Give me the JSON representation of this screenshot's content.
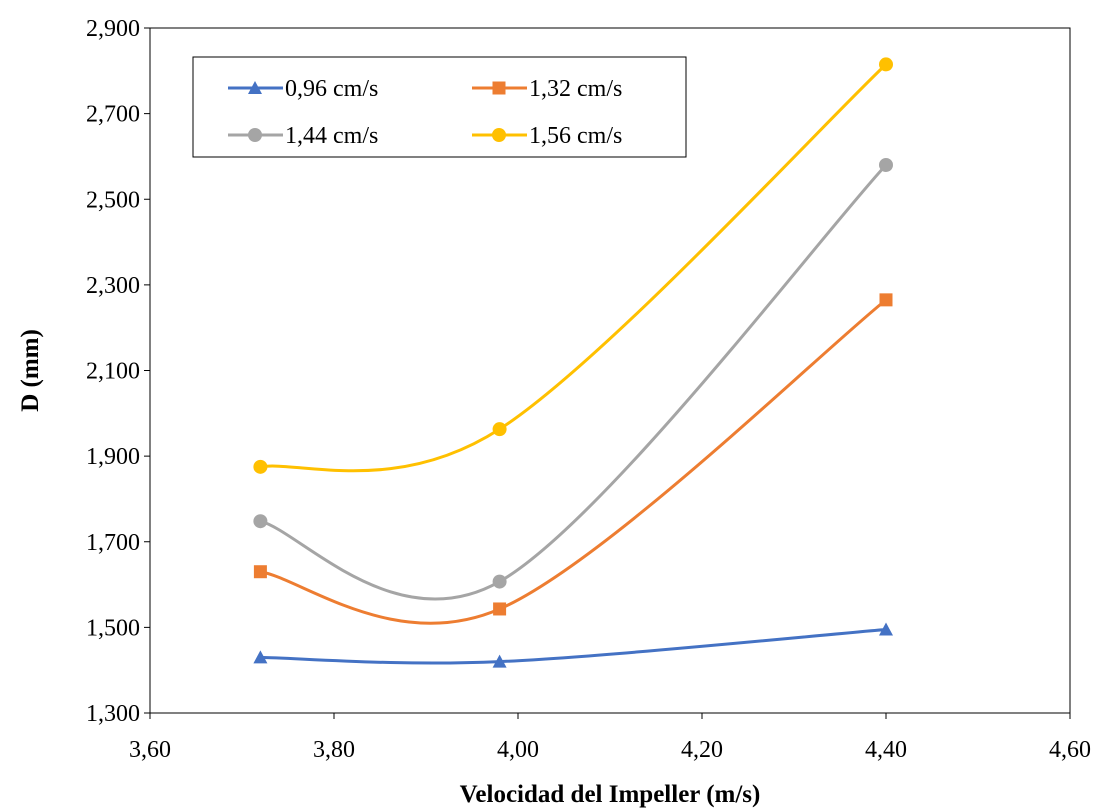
{
  "chart_data": {
    "type": "line",
    "title": "",
    "xlabel": "Velocidad del Impeller (m/s)",
    "ylabel": "D (mm)",
    "xlim": [
      3.6,
      4.6
    ],
    "ylim": [
      1.3,
      2.9
    ],
    "x_ticks": [
      3.6,
      3.8,
      4.0,
      4.2,
      4.4,
      4.6
    ],
    "x_tick_labels": [
      "3,60",
      "3,80",
      "4,00",
      "4,20",
      "4,40",
      "4,60"
    ],
    "y_ticks": [
      1.3,
      1.5,
      1.7,
      1.9,
      2.1,
      2.3,
      2.5,
      2.7,
      2.9
    ],
    "y_tick_labels": [
      "1,300",
      "1,500",
      "1,700",
      "1,900",
      "2,100",
      "2,300",
      "2,500",
      "2,700",
      "2,900"
    ],
    "grid": false,
    "smooth": true,
    "legend_position": "top-left",
    "x": [
      3.72,
      3.98,
      4.4
    ],
    "series": [
      {
        "name": "0,96 cm/s",
        "values": [
          1.43,
          1.42,
          1.495
        ],
        "color": "#4472C4",
        "marker": "triangle"
      },
      {
        "name": "1,32 cm/s",
        "values": [
          1.63,
          1.543,
          2.265
        ],
        "color": "#ED7D31",
        "marker": "square"
      },
      {
        "name": "1,44 cm/s",
        "values": [
          1.748,
          1.607,
          2.58
        ],
        "color": "#A5A5A5",
        "marker": "circle"
      },
      {
        "name": "1,56 cm/s",
        "values": [
          1.875,
          1.963,
          2.815
        ],
        "color": "#FFC000",
        "marker": "circle"
      }
    ]
  }
}
